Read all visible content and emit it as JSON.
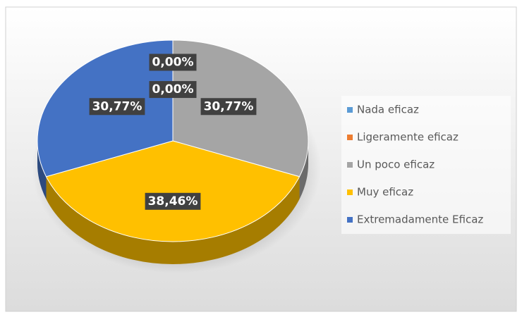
{
  "chart_data": {
    "type": "pie",
    "categories": [
      "Nada eficaz",
      "Ligeramente eficaz",
      "Un poco eficaz",
      "Muy eficaz",
      "Extremadamente Eficaz"
    ],
    "values": [
      0,
      0,
      30.77,
      38.46,
      30.77
    ],
    "value_labels": [
      "0,00%",
      "0,00%",
      "30,77%",
      "38,46%",
      "30,77%"
    ],
    "colors": [
      "#5b9bd5",
      "#ed7d31",
      "#a5a5a5",
      "#ffc000",
      "#4472c4"
    ],
    "legend": "right"
  }
}
